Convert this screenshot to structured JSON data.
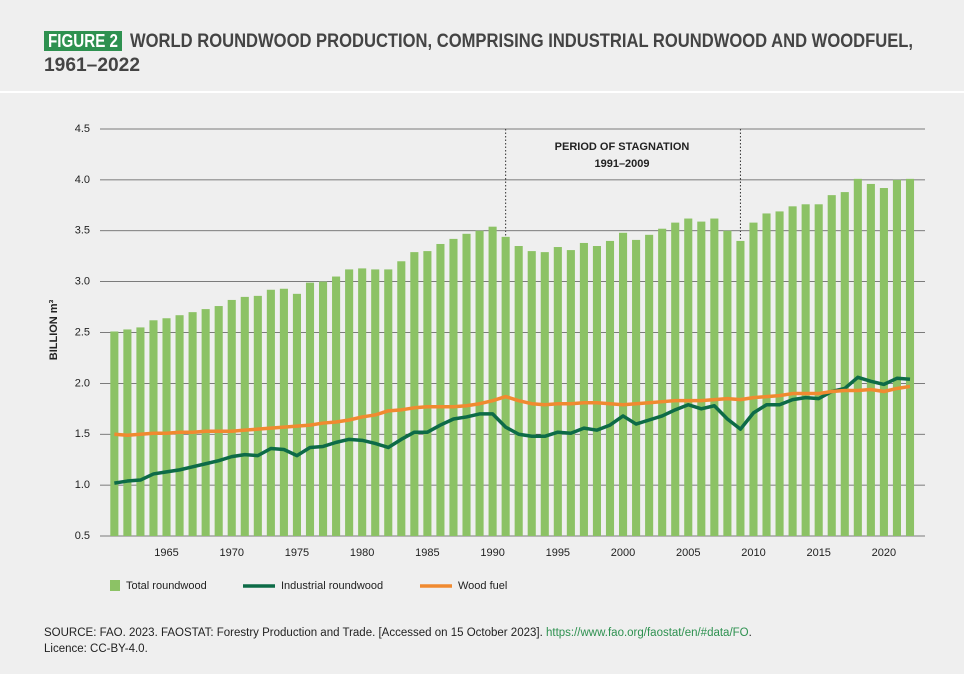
{
  "chart_data": {
    "type": "bar",
    "figure_label": "FIGURE 2",
    "title_lines": [
      "WORLD ROUNDWOOD PRODUCTION, COMPRISING INDUSTRIAL ROUNDWOOD AND WOODFUEL,",
      "1961–2022"
    ],
    "ylabel": "BILLION m³",
    "x": [
      1961,
      1962,
      1963,
      1964,
      1965,
      1966,
      1967,
      1968,
      1969,
      1970,
      1971,
      1972,
      1973,
      1974,
      1975,
      1976,
      1977,
      1978,
      1979,
      1980,
      1981,
      1982,
      1983,
      1984,
      1985,
      1986,
      1987,
      1988,
      1989,
      1990,
      1991,
      1992,
      1993,
      1994,
      1995,
      1996,
      1997,
      1998,
      1999,
      2000,
      2001,
      2002,
      2003,
      2004,
      2005,
      2006,
      2007,
      2008,
      2009,
      2010,
      2011,
      2012,
      2013,
      2014,
      2015,
      2016,
      2017,
      2018,
      2019,
      2020,
      2021,
      2022
    ],
    "xlim": [
      1959.9,
      2023.15
    ],
    "xticks": [
      1965,
      1970,
      1975,
      1980,
      1985,
      1990,
      1995,
      2000,
      2005,
      2010,
      2015,
      2020
    ],
    "ylim": [
      0.5,
      4.5
    ],
    "yticks": [
      {
        "value": 0.5,
        "label": "0.5"
      },
      {
        "value": 1,
        "label": "1.0"
      },
      {
        "value": 1.5,
        "label": "1.5"
      },
      {
        "value": 2,
        "label": "2.0"
      },
      {
        "value": 2.5,
        "label": "2.5"
      },
      {
        "value": 3,
        "label": "3.0"
      },
      {
        "value": 3.5,
        "label": "3.5"
      },
      {
        "value": 4,
        "label": "4.0"
      },
      {
        "value": 4.5,
        "label": "4.5"
      }
    ],
    "grid": true,
    "annotation": {
      "text": [
        "PERIOD OF STAGNATION",
        "1991–2009"
      ],
      "x": [
        1991,
        2009
      ]
    },
    "series": [
      {
        "name": "Total roundwood",
        "type": "bar",
        "color": "#8cc265",
        "values": [
          2.51,
          2.53,
          2.55,
          2.62,
          2.64,
          2.67,
          2.7,
          2.73,
          2.76,
          2.82,
          2.85,
          2.86,
          2.92,
          2.93,
          2.88,
          2.99,
          3.0,
          3.05,
          3.12,
          3.13,
          3.12,
          3.12,
          3.2,
          3.29,
          3.3,
          3.37,
          3.42,
          3.47,
          3.5,
          3.54,
          3.44,
          3.35,
          3.3,
          3.29,
          3.34,
          3.31,
          3.38,
          3.35,
          3.4,
          3.48,
          3.41,
          3.46,
          3.52,
          3.58,
          3.62,
          3.59,
          3.62,
          3.5,
          3.4,
          3.58,
          3.67,
          3.69,
          3.74,
          3.76,
          3.76,
          3.85,
          3.88,
          4.01,
          3.96,
          3.92,
          4.0,
          4.01
        ]
      },
      {
        "name": "Industrial roundwood",
        "type": "line",
        "color": "#0d6b47",
        "values": [
          1.02,
          1.04,
          1.05,
          1.11,
          1.13,
          1.15,
          1.18,
          1.21,
          1.24,
          1.28,
          1.3,
          1.29,
          1.36,
          1.35,
          1.29,
          1.37,
          1.38,
          1.42,
          1.45,
          1.44,
          1.41,
          1.37,
          1.45,
          1.52,
          1.52,
          1.59,
          1.65,
          1.67,
          1.7,
          1.7,
          1.57,
          1.5,
          1.48,
          1.48,
          1.52,
          1.51,
          1.56,
          1.54,
          1.59,
          1.68,
          1.6,
          1.64,
          1.68,
          1.74,
          1.79,
          1.75,
          1.78,
          1.65,
          1.55,
          1.71,
          1.79,
          1.79,
          1.84,
          1.86,
          1.85,
          1.92,
          1.95,
          2.06,
          2.02,
          1.99,
          2.05,
          2.04
        ]
      },
      {
        "name": "Wood fuel",
        "type": "line",
        "color": "#f08a30",
        "values": [
          1.5,
          1.49,
          1.5,
          1.51,
          1.51,
          1.52,
          1.52,
          1.53,
          1.53,
          1.53,
          1.54,
          1.55,
          1.56,
          1.57,
          1.58,
          1.59,
          1.61,
          1.62,
          1.64,
          1.67,
          1.69,
          1.73,
          1.74,
          1.76,
          1.77,
          1.77,
          1.77,
          1.78,
          1.8,
          1.83,
          1.87,
          1.83,
          1.8,
          1.79,
          1.8,
          1.8,
          1.81,
          1.81,
          1.8,
          1.79,
          1.8,
          1.81,
          1.82,
          1.83,
          1.83,
          1.83,
          1.84,
          1.85,
          1.84,
          1.86,
          1.87,
          1.88,
          1.9,
          1.9,
          1.9,
          1.92,
          1.93,
          1.93,
          1.94,
          1.92,
          1.95,
          1.97
        ]
      }
    ],
    "source": {
      "text": "SOURCE: FAO. 2023. FAOSTAT: Forestry Production and Trade. [Accessed on 15 October 2023]. ",
      "link": "https://www.fao.org/faostat/en/#data/FO",
      "end": ".",
      "licence": "Licence: CC-BY-4.0."
    }
  }
}
